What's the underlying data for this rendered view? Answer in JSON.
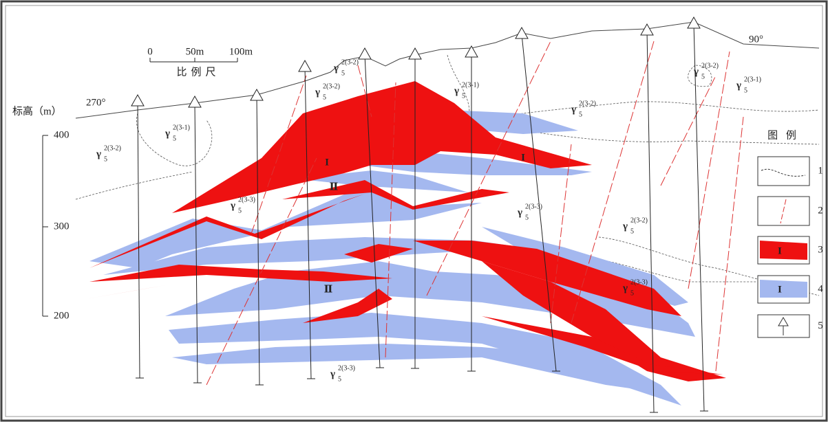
{
  "scale_bar": {
    "ticks": [
      "0",
      "50m",
      "100m"
    ],
    "label": "比例尺"
  },
  "elevation_axis": {
    "label": "标高（m）",
    "ticks": [
      "400",
      "300",
      "200"
    ]
  },
  "orientations": [
    "270°",
    "90°"
  ],
  "rock_units": [
    {
      "symbol": "γ",
      "sub": "5",
      "sup": "2(3-2)"
    },
    {
      "symbol": "γ",
      "sub": "5",
      "sup": "2(3-1)"
    },
    {
      "symbol": "γ",
      "sub": "5",
      "sup": "2(3-3)"
    },
    {
      "symbol": "γ",
      "sub": "5",
      "sup": "2(3-2)"
    },
    {
      "symbol": "γ",
      "sub": "5",
      "sup": "2(3-2)"
    },
    {
      "symbol": "γ",
      "sub": "5",
      "sup": "2(3-1)"
    },
    {
      "symbol": "γ",
      "sub": "5",
      "sup": "2(3-2)"
    },
    {
      "symbol": "γ",
      "sub": "5",
      "sup": "2(3-2)"
    },
    {
      "symbol": "γ",
      "sub": "5",
      "sup": "2(3-1)"
    },
    {
      "symbol": "γ",
      "sub": "5",
      "sup": "2(3-3)"
    },
    {
      "symbol": "γ",
      "sub": "5",
      "sup": "2(3-2)"
    },
    {
      "symbol": "γ",
      "sub": "5",
      "sup": "2(3-3)"
    },
    {
      "symbol": "γ",
      "sub": "5",
      "sup": "2(3-3)"
    }
  ],
  "ore_body_labels": [
    "I",
    "I",
    "Ⅱ",
    "Ⅱ"
  ],
  "legend": {
    "title": "图 例",
    "items": [
      {
        "number": "1"
      },
      {
        "number": "2"
      },
      {
        "number": "3",
        "symbol": "I"
      },
      {
        "number": "4",
        "symbol": "I"
      },
      {
        "number": "5"
      }
    ]
  }
}
